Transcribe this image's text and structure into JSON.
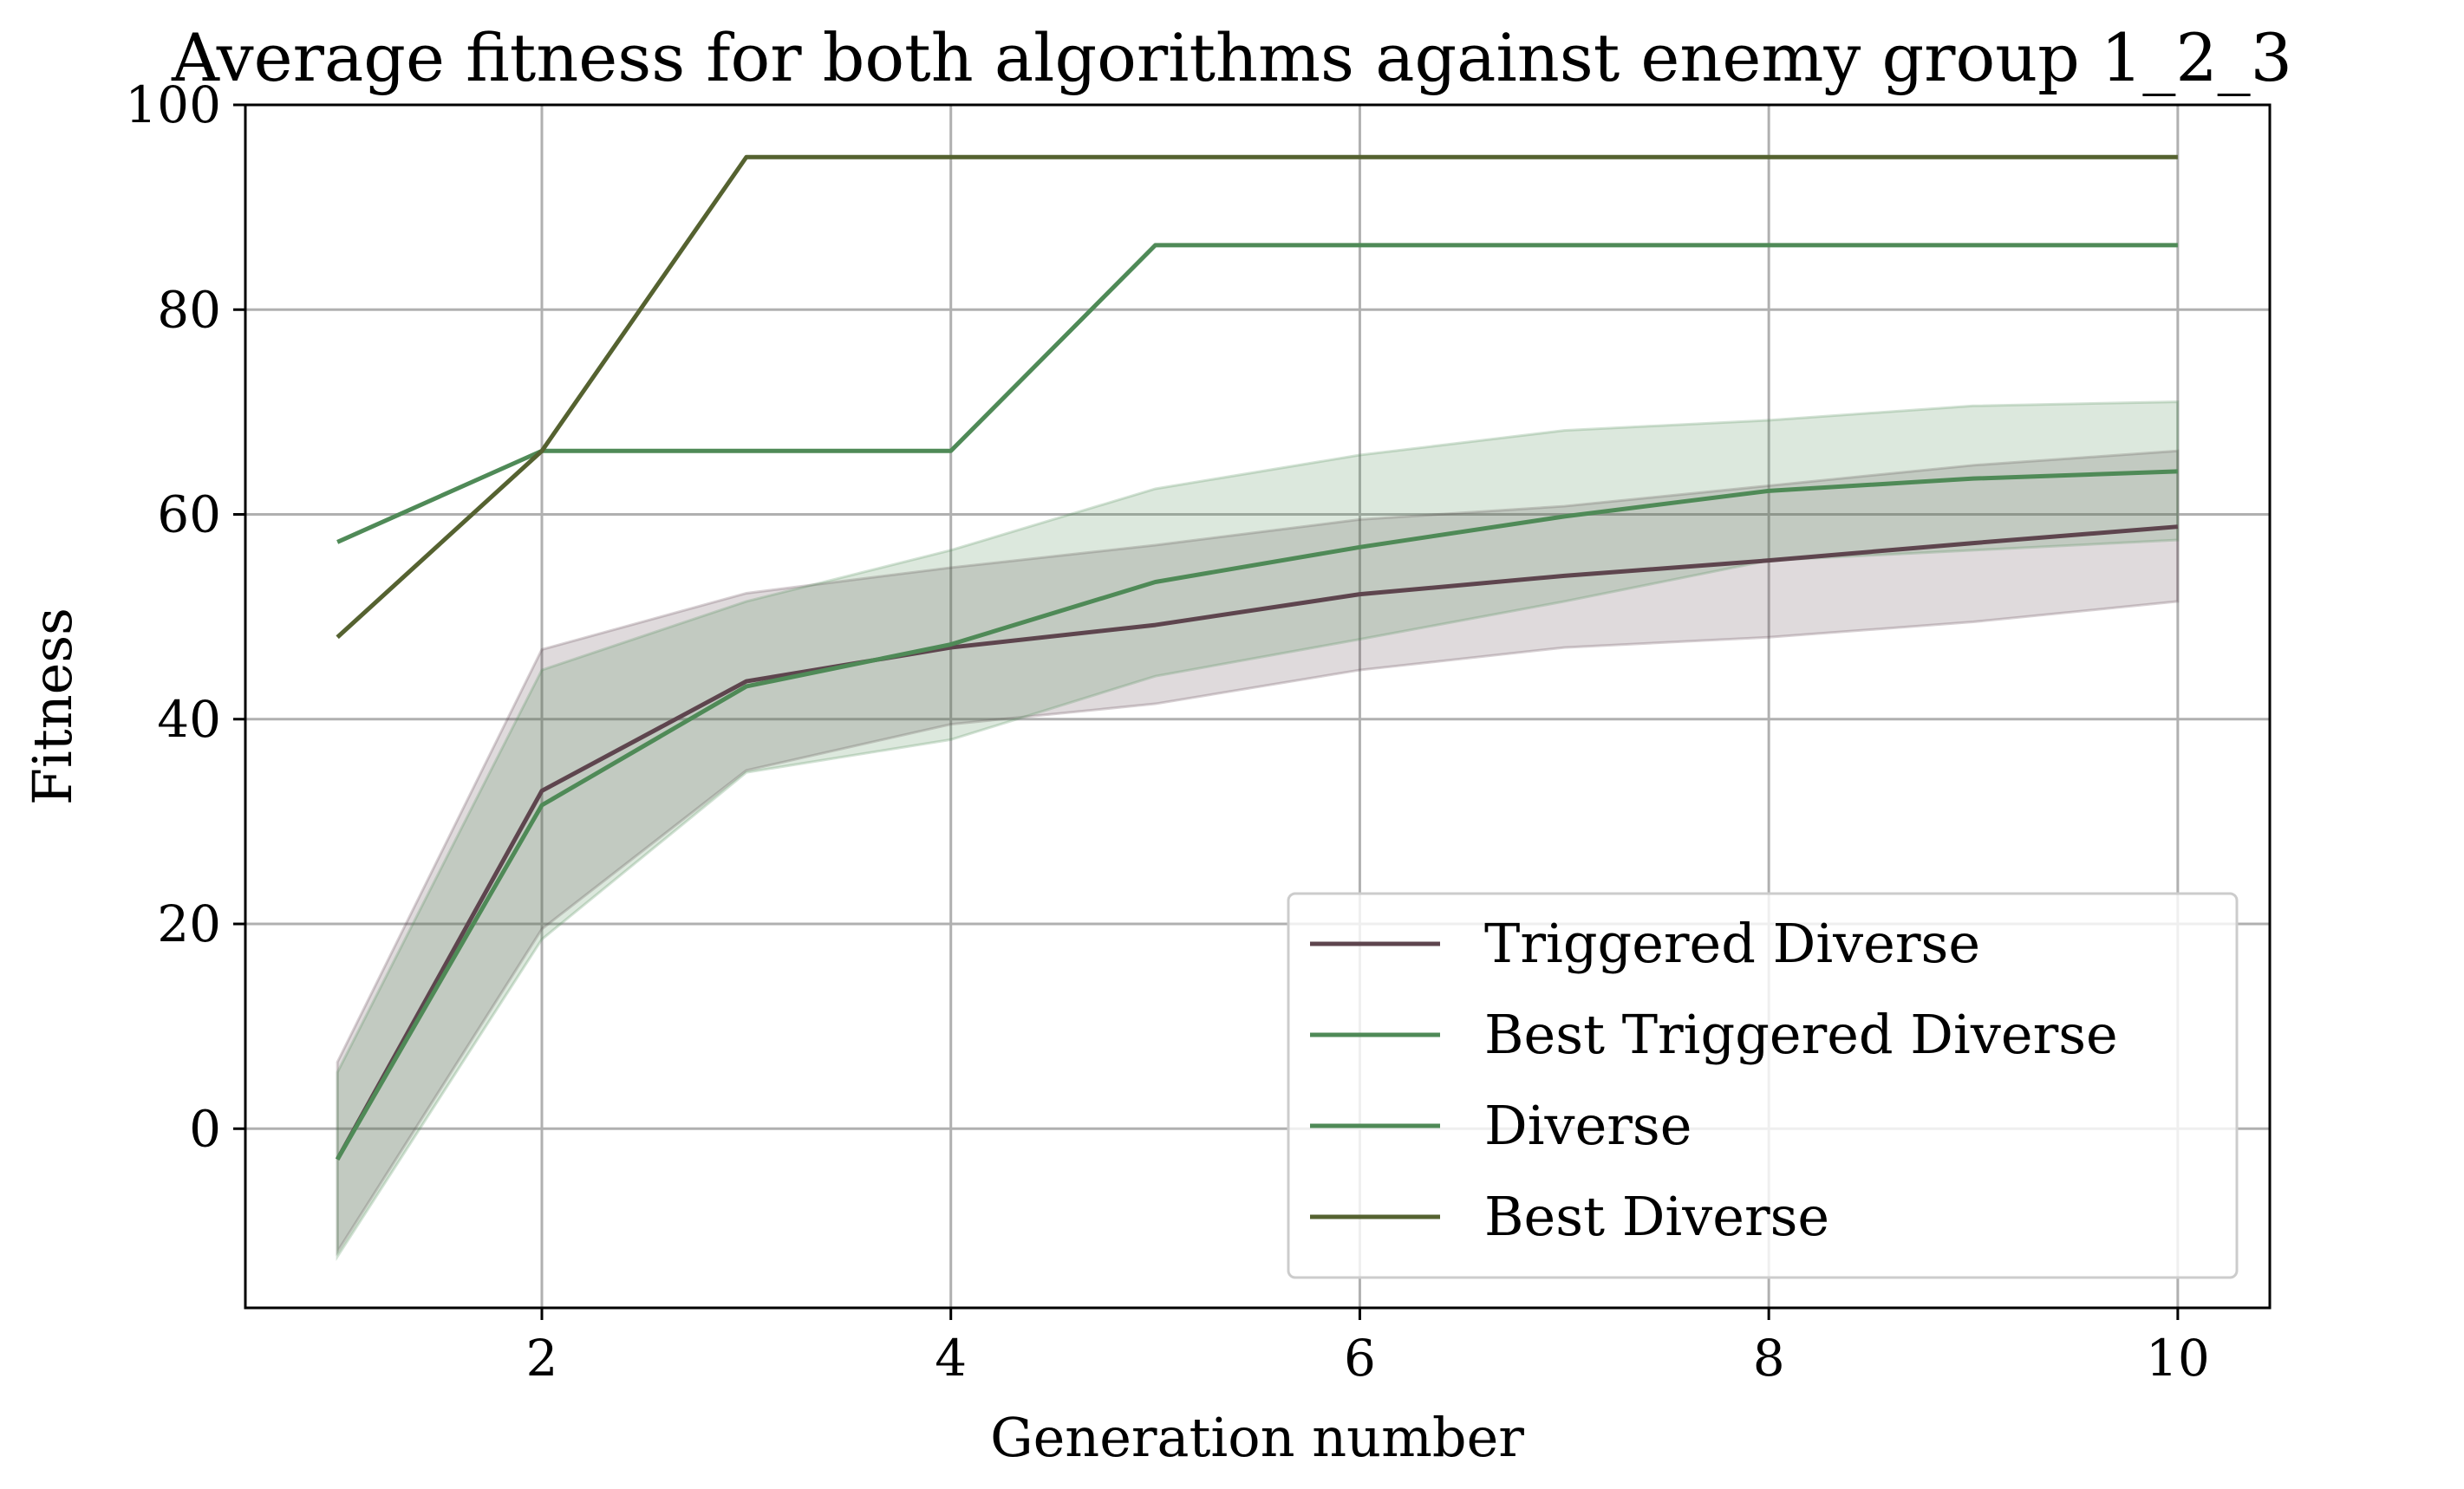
{
  "chart_data": {
    "type": "line",
    "title": "Average fitness for both algorithms against enemy group 1_2_3",
    "xlabel": "Generation number",
    "ylabel": "Fitness",
    "xlim": [
      0.55,
      10.45
    ],
    "ylim": [
      -17.5,
      100
    ],
    "xticks": [
      2,
      4,
      6,
      8,
      10
    ],
    "yticks": [
      0,
      20,
      40,
      60,
      80,
      100
    ],
    "xtick_labels": [
      "2",
      "4",
      "6",
      "8",
      "10"
    ],
    "ytick_labels": [
      "0",
      "20",
      "40",
      "60",
      "80",
      "100"
    ],
    "grid": true,
    "legend_position": "lower-right",
    "x": [
      1,
      2,
      3,
      4,
      5,
      6,
      7,
      8,
      9,
      10
    ],
    "bands": [
      {
        "for_series": "Triggered Diverse",
        "color": "#5e454e",
        "opacity": 0.2,
        "lower": [
          -12.0,
          19.5,
          35.0,
          39.5,
          41.5,
          44.8,
          47.0,
          48.0,
          49.5,
          51.5
        ],
        "upper": [
          6.5,
          46.8,
          52.3,
          54.8,
          57.0,
          59.5,
          60.8,
          62.8,
          64.8,
          66.2
        ]
      },
      {
        "for_series": "Diverse",
        "color": "#4f8a57",
        "opacity": 0.2,
        "lower": [
          -12.5,
          18.5,
          34.8,
          38.0,
          44.2,
          47.8,
          51.5,
          55.5,
          56.5,
          57.5
        ],
        "upper": [
          5.5,
          44.8,
          51.5,
          56.5,
          62.5,
          65.8,
          68.2,
          69.2,
          70.6,
          71.0
        ]
      }
    ],
    "series": [
      {
        "name": "Triggered Diverse",
        "color": "#5e454e",
        "values": [
          -3.0,
          33.0,
          43.7,
          47.0,
          49.2,
          52.2,
          54.0,
          55.5,
          57.2,
          58.8
        ]
      },
      {
        "name": "Best Triggered Diverse",
        "color": "#4f8a57",
        "values": [
          57.3,
          66.2,
          66.2,
          66.2,
          86.3,
          86.3,
          86.3,
          86.3,
          86.3,
          86.3
        ]
      },
      {
        "name": "Diverse",
        "color": "#4f8a57",
        "values": [
          -3.0,
          31.6,
          43.2,
          47.3,
          53.4,
          56.8,
          59.8,
          62.3,
          63.5,
          64.2
        ]
      },
      {
        "name": "Best Diverse",
        "color": "#556230",
        "values": [
          48.0,
          66.2,
          94.9,
          94.9,
          94.9,
          94.9,
          94.9,
          94.9,
          94.9,
          94.9
        ]
      }
    ]
  }
}
